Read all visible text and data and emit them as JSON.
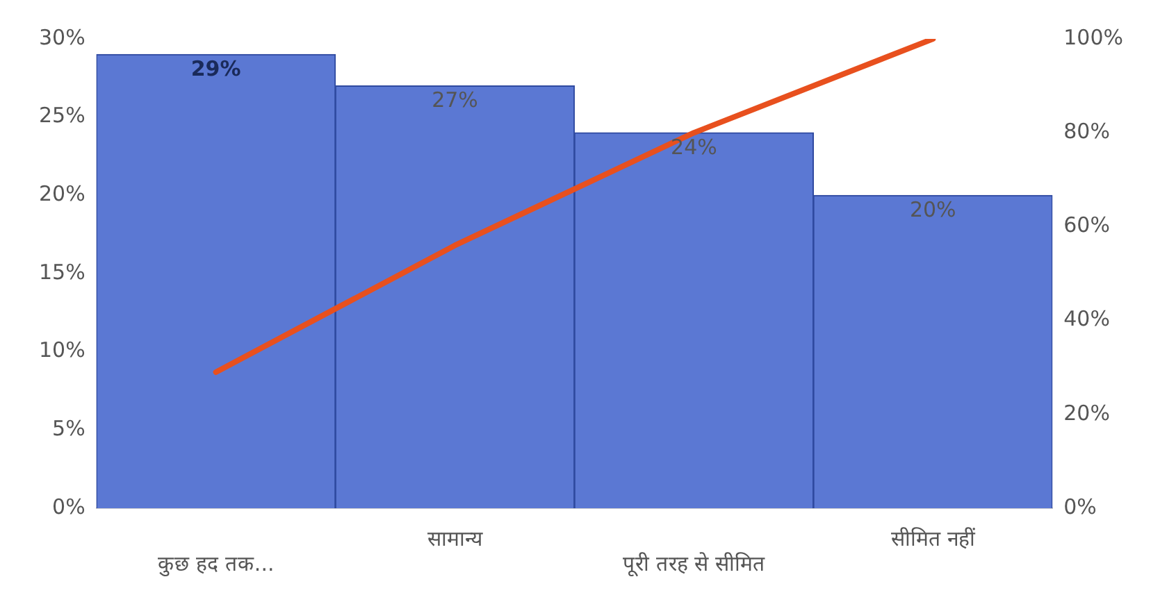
{
  "chart_data": {
    "type": "bar",
    "categories": [
      "कुछ हद तक...",
      "सामान्य",
      "पूरी तरह से सीमित",
      "सीमित नहीं"
    ],
    "series": [
      {
        "color": "#5b78d3",
        "values": [
          29,
          27,
          24,
          20
        ],
        "value_labels": [
          "29%",
          "27%",
          "24%",
          "20%"
        ]
      },
      {
        "type": "line",
        "axis": "y2",
        "color": "#e8501e",
        "values": [
          29,
          56,
          80,
          100
        ]
      }
    ],
    "ylim": [
      0,
      30
    ],
    "yticks": [
      {
        "value": 0,
        "label": "0%"
      },
      {
        "value": 5,
        "label": "5%"
      },
      {
        "value": 10,
        "label": "10%"
      },
      {
        "value": 15,
        "label": "15%"
      },
      {
        "value": 20,
        "label": "20%"
      },
      {
        "value": 25,
        "label": "25%"
      },
      {
        "value": 30,
        "label": "30%"
      }
    ],
    "y2lim": [
      0,
      100
    ],
    "y2ticks": [
      {
        "value": 0,
        "label": "0%"
      },
      {
        "value": 20,
        "label": "20%"
      },
      {
        "value": 40,
        "label": "40%"
      },
      {
        "value": 60,
        "label": "60%"
      },
      {
        "value": 80,
        "label": "80%"
      },
      {
        "value": 100,
        "label": "100%"
      }
    ],
    "grid": false,
    "legend": false,
    "marker": "none"
  }
}
